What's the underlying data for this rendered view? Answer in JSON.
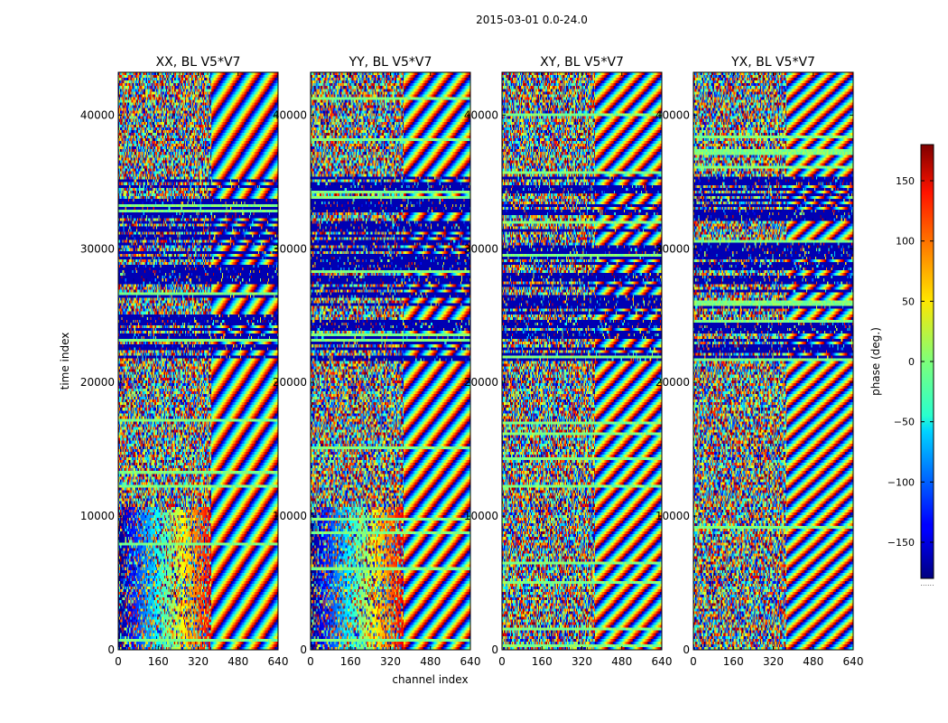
{
  "figure": {
    "suptitle": "2015-03-01 0.0-24.0"
  },
  "chart_data": [
    {
      "type": "heatmap",
      "title": "XX, BL V5*V7",
      "xlabel": "",
      "ylabel": "time index",
      "xlim": [
        0,
        640
      ],
      "ylim": [
        0,
        43200
      ],
      "xticks": [
        0,
        160,
        320,
        480,
        640
      ],
      "yticks": [
        0,
        10000,
        20000,
        30000,
        40000
      ],
      "show_yticklabels": true
    },
    {
      "type": "heatmap",
      "title": "YY, BL V5*V7",
      "xlabel": "channel index",
      "ylabel": "",
      "xlim": [
        0,
        640
      ],
      "ylim": [
        0,
        43200
      ],
      "xticks": [
        0,
        160,
        320,
        480,
        640
      ],
      "yticks": [
        0,
        10000,
        20000,
        30000,
        40000
      ],
      "show_yticklabels": true
    },
    {
      "type": "heatmap",
      "title": "XY, BL V5*V7",
      "xlabel": "",
      "ylabel": "",
      "xlim": [
        0,
        640
      ],
      "ylim": [
        0,
        43200
      ],
      "xticks": [
        0,
        160,
        320,
        480,
        640
      ],
      "yticks": [
        0,
        10000,
        20000,
        30000,
        40000
      ],
      "show_yticklabels": true
    },
    {
      "type": "heatmap",
      "title": "YX, BL V5*V7",
      "xlabel": "",
      "ylabel": "",
      "xlim": [
        0,
        640
      ],
      "ylim": [
        0,
        43200
      ],
      "xticks": [
        0,
        160,
        320,
        480,
        640
      ],
      "yticks": [
        0,
        10000,
        20000,
        30000,
        40000
      ],
      "show_yticklabels": true
    }
  ],
  "colorbar": {
    "label": "phase (deg.)",
    "range": [
      -180,
      180
    ],
    "ticks": [
      150,
      100,
      50,
      0,
      -50,
      -100,
      -150
    ],
    "tick_labels": [
      "150",
      "100",
      "50",
      "0",
      "−50",
      "−100",
      "−150"
    ],
    "colormap": "jet",
    "extra_label": "......"
  }
}
